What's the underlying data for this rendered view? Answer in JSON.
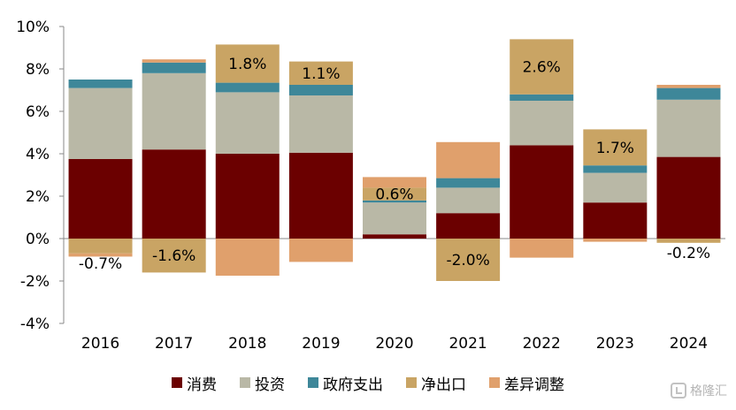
{
  "chart_data": {
    "type": "bar",
    "stacked": true,
    "categories": [
      "2016",
      "2017",
      "2018",
      "2019",
      "2020",
      "2021",
      "2022",
      "2023",
      "2024"
    ],
    "ylim": [
      -4,
      10
    ],
    "yticks": [
      -4,
      -2,
      0,
      2,
      4,
      6,
      8,
      10
    ],
    "ytick_labels": [
      "-4%",
      "-2%",
      "0%",
      "2%",
      "4%",
      "6%",
      "8%",
      "10%"
    ],
    "series": [
      {
        "name": "消费",
        "color": "#6b0000",
        "values": [
          3.75,
          4.2,
          4.0,
          4.05,
          0.2,
          1.2,
          4.4,
          1.7,
          3.85
        ]
      },
      {
        "name": "投资",
        "color": "#b9b8a6",
        "values": [
          3.35,
          3.6,
          2.9,
          2.7,
          1.5,
          1.2,
          2.1,
          1.4,
          2.7
        ]
      },
      {
        "name": "政府支出",
        "color": "#3e8799",
        "values": [
          0.4,
          0.5,
          0.45,
          0.5,
          0.1,
          0.45,
          0.3,
          0.35,
          0.55
        ]
      },
      {
        "name": "净出口",
        "color": "#c9a464",
        "values": [
          -0.7,
          -1.6,
          1.8,
          1.1,
          0.6,
          -2.0,
          2.6,
          1.7,
          -0.2
        ]
      },
      {
        "name": "差异调整",
        "color": "#e0a06c",
        "values": [
          -0.15,
          0.15,
          -1.75,
          -1.1,
          0.5,
          1.7,
          -0.9,
          -0.15,
          0.15
        ]
      }
    ],
    "data_labels": [
      {
        "series": "净出口",
        "category": "2016",
        "text": "-0.7%"
      },
      {
        "series": "净出口",
        "category": "2017",
        "text": "-1.6%"
      },
      {
        "series": "净出口",
        "category": "2018",
        "text": "1.8%"
      },
      {
        "series": "净出口",
        "category": "2019",
        "text": "1.1%"
      },
      {
        "series": "净出口",
        "category": "2020",
        "text": "0.6%"
      },
      {
        "series": "净出口",
        "category": "2021",
        "text": "-2.0%"
      },
      {
        "series": "净出口",
        "category": "2022",
        "text": "2.6%"
      },
      {
        "series": "净出口",
        "category": "2023",
        "text": "1.7%"
      },
      {
        "series": "净出口",
        "category": "2024",
        "text": "-0.2%"
      }
    ],
    "legend_position": "bottom",
    "grid": false
  },
  "watermark": {
    "text": "格隆汇"
  }
}
